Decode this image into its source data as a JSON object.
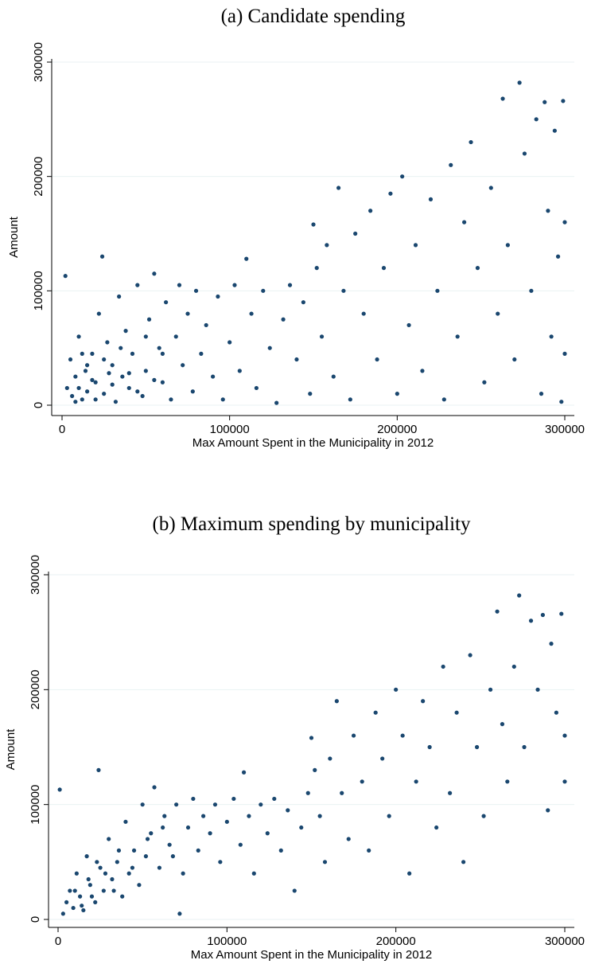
{
  "chart_data": [
    {
      "type": "scatter",
      "title": "(a) Candidate spending",
      "xlabel": "Max Amount Spent in the Municipality in 2012",
      "ylabel": "Amount",
      "color": "#1a476f",
      "grid": true,
      "xlim": [
        0,
        300000
      ],
      "ylim": [
        0,
        300000
      ],
      "xticks": [
        0,
        100000,
        200000,
        300000
      ],
      "yticks": [
        0,
        100000,
        200000,
        300000
      ],
      "x": [
        2000,
        3000,
        5000,
        6000,
        8000,
        10000,
        12000,
        14000,
        15000,
        18000,
        20000,
        22000,
        24000,
        25000,
        27000,
        30000,
        32000,
        34000,
        36000,
        38000,
        40000,
        42000,
        45000,
        48000,
        50000,
        52000,
        55000,
        58000,
        60000,
        62000,
        65000,
        68000,
        70000,
        72000,
        75000,
        78000,
        80000,
        83000,
        86000,
        90000,
        93000,
        96000,
        100000,
        103000,
        106000,
        110000,
        113000,
        116000,
        120000,
        124000,
        128000,
        132000,
        136000,
        140000,
        144000,
        148000,
        150000,
        152000,
        155000,
        158000,
        162000,
        165000,
        168000,
        172000,
        175000,
        180000,
        184000,
        188000,
        192000,
        196000,
        200000,
        203000,
        207000,
        211000,
        215000,
        220000,
        224000,
        228000,
        232000,
        236000,
        240000,
        244000,
        248000,
        252000,
        256000,
        260000,
        263000,
        266000,
        270000,
        273000,
        276000,
        280000,
        283000,
        286000,
        288000,
        290000,
        292000,
        294000,
        296000,
        298000,
        299000,
        300000,
        300000,
        10000,
        15000,
        20000,
        25000,
        30000,
        35000,
        40000,
        45000,
        50000,
        55000,
        60000,
        18000,
        28000,
        12000,
        8000
      ],
      "values": [
        113000,
        15000,
        40000,
        8000,
        25000,
        60000,
        5000,
        30000,
        12000,
        45000,
        20000,
        80000,
        130000,
        10000,
        55000,
        35000,
        3000,
        95000,
        25000,
        65000,
        15000,
        45000,
        105000,
        8000,
        30000,
        75000,
        115000,
        50000,
        20000,
        90000,
        5000,
        60000,
        105000,
        35000,
        80000,
        12000,
        100000,
        45000,
        70000,
        25000,
        95000,
        5000,
        55000,
        105000,
        30000,
        128000,
        80000,
        15000,
        100000,
        50000,
        2000,
        75000,
        105000,
        40000,
        90000,
        10000,
        158000,
        120000,
        60000,
        140000,
        25000,
        190000,
        100000,
        5000,
        150000,
        80000,
        170000,
        40000,
        120000,
        185000,
        10000,
        200000,
        70000,
        140000,
        30000,
        180000,
        100000,
        5000,
        210000,
        60000,
        160000,
        230000,
        120000,
        20000,
        190000,
        80000,
        268000,
        140000,
        40000,
        282000,
        220000,
        100000,
        250000,
        10000,
        265000,
        170000,
        60000,
        240000,
        130000,
        3000,
        266000,
        160000,
        45000,
        15000,
        35000,
        5000,
        40000,
        18000,
        50000,
        28000,
        12000,
        60000,
        22000,
        45000,
        22000,
        28000,
        45000,
        3000
      ]
    },
    {
      "type": "scatter",
      "title": "(b) Maximum spending by municipality",
      "xlabel": "Max Amount Spent in the Municipality in 2012",
      "ylabel": "Amount",
      "color": "#1a476f",
      "grid": true,
      "xlim": [
        0,
        300000
      ],
      "ylim": [
        0,
        300000
      ],
      "xticks": [
        0,
        100000,
        200000,
        300000
      ],
      "yticks": [
        0,
        100000,
        200000,
        300000
      ],
      "x": [
        1000,
        3000,
        5000,
        7000,
        9000,
        11000,
        13000,
        15000,
        17000,
        19000,
        22000,
        24000,
        25000,
        27000,
        30000,
        32000,
        35000,
        38000,
        40000,
        42000,
        45000,
        48000,
        50000,
        52000,
        55000,
        57000,
        60000,
        63000,
        66000,
        70000,
        72000,
        74000,
        77000,
        80000,
        83000,
        86000,
        90000,
        93000,
        96000,
        100000,
        104000,
        108000,
        110000,
        113000,
        116000,
        120000,
        124000,
        128000,
        132000,
        136000,
        140000,
        144000,
        148000,
        150000,
        152000,
        155000,
        158000,
        161000,
        165000,
        168000,
        172000,
        175000,
        180000,
        184000,
        188000,
        192000,
        196000,
        200000,
        204000,
        208000,
        212000,
        216000,
        220000,
        224000,
        228000,
        232000,
        236000,
        240000,
        244000,
        248000,
        252000,
        256000,
        260000,
        263000,
        266000,
        270000,
        273000,
        276000,
        280000,
        284000,
        287000,
        290000,
        292000,
        295000,
        298000,
        300000,
        300000,
        10000,
        14000,
        18000,
        20000,
        23000,
        28000,
        33000,
        36000,
        44000,
        53000,
        62000,
        68000
      ],
      "values": [
        113000,
        5000,
        15000,
        25000,
        10000,
        40000,
        20000,
        8000,
        55000,
        30000,
        15000,
        130000,
        45000,
        25000,
        70000,
        35000,
        50000,
        20000,
        85000,
        40000,
        60000,
        30000,
        100000,
        55000,
        75000,
        115000,
        45000,
        90000,
        65000,
        100000,
        5000,
        40000,
        80000,
        105000,
        60000,
        90000,
        75000,
        100000,
        50000,
        85000,
        105000,
        65000,
        128000,
        90000,
        40000,
        100000,
        75000,
        105000,
        60000,
        95000,
        25000,
        80000,
        110000,
        158000,
        130000,
        90000,
        50000,
        140000,
        190000,
        110000,
        70000,
        160000,
        120000,
        60000,
        180000,
        140000,
        90000,
        200000,
        160000,
        40000,
        120000,
        190000,
        150000,
        80000,
        220000,
        110000,
        180000,
        50000,
        230000,
        150000,
        90000,
        200000,
        268000,
        170000,
        120000,
        220000,
        282000,
        150000,
        260000,
        200000,
        265000,
        95000,
        240000,
        180000,
        266000,
        120000,
        160000,
        25000,
        12000,
        35000,
        20000,
        50000,
        40000,
        25000,
        60000,
        45000,
        70000,
        80000,
        55000
      ]
    }
  ]
}
